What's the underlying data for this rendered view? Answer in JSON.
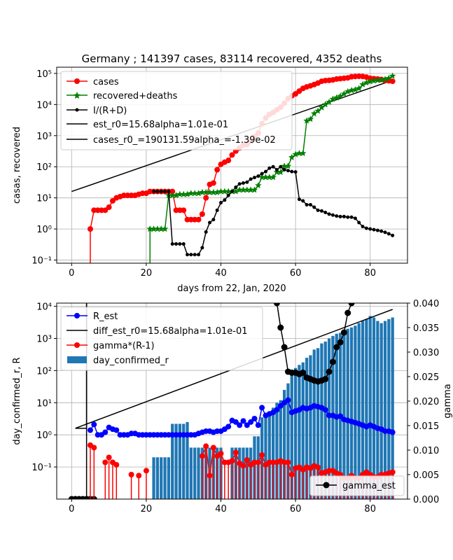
{
  "colors": {
    "cases": "#ff0000",
    "recovered": "#008000",
    "ir": "#000000",
    "est": "#000000",
    "r_est": "#0000ff",
    "gamma": "#ff0000",
    "bar": "#1f77b4",
    "grid": "#b0b0b0"
  },
  "chart_data": [
    {
      "type": "line",
      "title": "Germany ; 141397 cases, 83114 recovered, 4352 deaths",
      "xlabel": "days from 22, Jan, 2020",
      "ylabel": "casas, recovered",
      "xlim": [
        -4,
        90
      ],
      "yscale": "log",
      "ylim_log10": [
        -1.1,
        5.2
      ],
      "xticks": [
        0,
        20,
        40,
        60,
        80
      ],
      "yticks": [
        {
          "p": -1,
          "label": "10⁻¹"
        },
        {
          "p": 0,
          "label": "10⁰"
        },
        {
          "p": 1,
          "label": "10¹"
        },
        {
          "p": 2,
          "label": "10²"
        },
        {
          "p": 3,
          "label": "10³"
        },
        {
          "p": 4,
          "label": "10⁴"
        },
        {
          "p": 5,
          "label": "10⁵"
        }
      ],
      "grid": true,
      "legend_position": "top-left",
      "series": [
        {
          "key": "cases",
          "name": "cases",
          "marker": "circle",
          "x": [
            5,
            6,
            7,
            8,
            9,
            10,
            11,
            12,
            13,
            14,
            15,
            16,
            17,
            18,
            19,
            20,
            21,
            22,
            23,
            24,
            25,
            26,
            27,
            28,
            29,
            30,
            31,
            32,
            33,
            34,
            35,
            36,
            37,
            38,
            39,
            40,
            41,
            42,
            43,
            44,
            45,
            46,
            47,
            48,
            49,
            50,
            51,
            52,
            53,
            54,
            55,
            56,
            57,
            58,
            59,
            60,
            61,
            62,
            63,
            64,
            65,
            66,
            67,
            68,
            69,
            70,
            71,
            72,
            73,
            74,
            75,
            76,
            77,
            78,
            79,
            80,
            81,
            82,
            83,
            84,
            85,
            86
          ],
          "y": [
            1,
            4,
            4,
            4,
            4,
            5,
            8,
            10,
            11,
            12,
            12,
            12,
            12,
            13,
            14,
            14,
            16,
            16,
            16,
            16,
            16,
            16,
            16,
            4,
            4,
            4,
            2,
            2,
            2,
            2,
            3,
            10,
            27,
            30,
            80,
            120,
            140,
            160,
            240,
            320,
            400,
            500,
            520,
            660,
            920,
            1200,
            2400,
            3700,
            4800,
            5600,
            6800,
            8200,
            11000,
            15500,
            19000,
            22000,
            27000,
            33000,
            37000,
            40000,
            44000,
            49000,
            56000,
            59000,
            60000,
            62000,
            66000,
            68000,
            70000,
            72000,
            78000,
            80000,
            81000,
            80000,
            76000,
            70000,
            68000,
            66000,
            64000,
            60000,
            58000,
            56000
          ]
        },
        {
          "key": "recovered",
          "name": "recovered+deaths",
          "marker": "star",
          "x": [
            21,
            22,
            23,
            24,
            25,
            26,
            27,
            28,
            29,
            30,
            31,
            32,
            33,
            34,
            35,
            36,
            37,
            38,
            39,
            40,
            41,
            42,
            43,
            44,
            45,
            46,
            47,
            48,
            49,
            50,
            51,
            52,
            53,
            54,
            55,
            56,
            57,
            58,
            59,
            60,
            61,
            62,
            63,
            64,
            65,
            66,
            67,
            68,
            69,
            70,
            71,
            72,
            73,
            74,
            75,
            76,
            77,
            78,
            79,
            80,
            81,
            82,
            83,
            84,
            85,
            86
          ],
          "y": [
            1,
            1,
            1,
            1,
            1,
            12,
            12,
            12,
            13,
            13,
            13,
            14,
            14,
            14,
            15,
            15,
            15,
            15,
            15,
            16,
            16,
            16,
            16,
            16,
            18,
            18,
            18,
            18,
            18,
            25,
            46,
            46,
            46,
            46,
            67,
            67,
            105,
            105,
            200,
            250,
            270,
            270,
            3000,
            3400,
            5100,
            6200,
            8000,
            10000,
            12000,
            15000,
            16500,
            18600,
            22000,
            26000,
            28500,
            30000,
            33000,
            44000,
            50000,
            55000,
            58000,
            60000,
            62000,
            65000,
            70000,
            83000
          ]
        },
        {
          "key": "ir",
          "name": "I/(R+D)",
          "marker": "dot",
          "x": [
            22,
            23,
            24,
            25,
            26,
            27,
            28,
            29,
            30,
            31,
            32,
            33,
            34,
            35,
            36,
            37,
            38,
            39,
            40,
            41,
            42,
            43,
            44,
            45,
            46,
            47,
            48,
            49,
            50,
            51,
            52,
            53,
            54,
            55,
            56,
            57,
            58,
            59,
            60,
            61,
            62,
            63,
            64,
            65,
            66,
            67,
            68,
            69,
            70,
            71,
            72,
            73,
            74,
            75,
            76,
            77,
            78,
            79,
            80,
            81,
            82,
            83,
            84,
            85,
            86
          ],
          "y": [
            16,
            16,
            16,
            16,
            16,
            0.33,
            0.33,
            0.33,
            0.33,
            0.15,
            0.15,
            0.15,
            0.15,
            0.25,
            0.8,
            1.6,
            2,
            4,
            7,
            8.5,
            12,
            16,
            22,
            28,
            30,
            32,
            40,
            45,
            50,
            60,
            70,
            90,
            100,
            80,
            100,
            80,
            75,
            70,
            68,
            9,
            8,
            6,
            6,
            5,
            4,
            3.8,
            3.4,
            3,
            2.8,
            2.6,
            2.5,
            2.5,
            2.4,
            2.4,
            2.2,
            1.6,
            1.2,
            1.05,
            1,
            0.95,
            0.9,
            0.85,
            0.78,
            0.7,
            0.62
          ]
        },
        {
          "key": "est",
          "name": "est_r0=15.68alpha=1.01e-01",
          "x": [
            0,
            86
          ],
          "y": [
            16,
            60000
          ]
        },
        {
          "key": "est2",
          "name": "cases_r0_=190131.59alpha_=-1.39e-02",
          "x": [
            0,
            86
          ],
          "y": [
            16,
            60000
          ]
        }
      ]
    },
    {
      "type": "bar",
      "xlabel": "",
      "ylabel": "day_confirmed_r, R",
      "y2label": "gamma",
      "xlim": [
        -4,
        90
      ],
      "yscale": "log",
      "ylim_log10": [
        -2,
        4.1
      ],
      "y2lim": [
        0,
        0.04
      ],
      "xticks": [
        0,
        20,
        40,
        60,
        80
      ],
      "yticks": [
        {
          "p": -1,
          "label": "10⁻¹"
        },
        {
          "p": 0,
          "label": "10⁰"
        },
        {
          "p": 1,
          "label": "10¹"
        },
        {
          "p": 2,
          "label": "10²"
        },
        {
          "p": 3,
          "label": "10³"
        },
        {
          "p": 4,
          "label": "10⁴"
        }
      ],
      "y2ticks": [
        "0.000",
        "0.005",
        "0.010",
        "0.015",
        "0.020",
        "0.025",
        "0.030",
        "0.035",
        "0.040"
      ],
      "grid": true,
      "legend_position": "top-left",
      "legend2_position": "bottom-right",
      "legend": [
        {
          "key": "r_est",
          "label": "R_est"
        },
        {
          "key": "diff",
          "label": "diff_est_r0=15.68alpha=1.01e-01"
        },
        {
          "key": "gamma",
          "label": "gamma*(R-1)"
        },
        {
          "key": "bar",
          "label": "day_confirmed_r"
        }
      ],
      "legend2": [
        {
          "key": "gamma_est",
          "label": "gamma_est"
        }
      ],
      "bars": {
        "x": [
          22,
          23,
          24,
          25,
          26,
          27,
          28,
          29,
          30,
          31,
          32,
          33,
          34,
          35,
          36,
          37,
          38,
          39,
          40,
          41,
          42,
          43,
          44,
          45,
          46,
          47,
          48,
          49,
          50,
          51,
          52,
          53,
          54,
          55,
          56,
          57,
          58,
          59,
          60,
          61,
          62,
          63,
          64,
          65,
          66,
          67,
          68,
          69,
          70,
          71,
          72,
          73,
          74,
          75,
          76,
          77,
          78,
          79,
          80,
          81,
          82,
          83,
          84,
          85,
          86
        ],
        "y": [
          0.2,
          0.2,
          0.2,
          0.2,
          0.2,
          2.2,
          2.2,
          2.2,
          2.2,
          2.5,
          0.4,
          0.4,
          0.4,
          0.4,
          0.4,
          0.4,
          0.4,
          0.4,
          0.4,
          0,
          0,
          0.4,
          0.4,
          0.4,
          0.4,
          0.4,
          0.4,
          0.9,
          0.9,
          3.5,
          4,
          5,
          7,
          10,
          12,
          25,
          40,
          80,
          120,
          150,
          180,
          250,
          300,
          450,
          500,
          700,
          800,
          1000,
          1200,
          1400,
          1500,
          1700,
          2000,
          2200,
          2500,
          3000,
          3500,
          4000,
          5000,
          4500,
          3500,
          3000,
          3500,
          4000,
          4500
        ]
      },
      "r_est": {
        "x": [
          5,
          6,
          7,
          8,
          9,
          10,
          11,
          12,
          13,
          14,
          15,
          16,
          17,
          18,
          19,
          20,
          21,
          22,
          23,
          24,
          25,
          26,
          27,
          28,
          29,
          30,
          31,
          32,
          33,
          34,
          35,
          36,
          37,
          38,
          39,
          40,
          41,
          42,
          43,
          44,
          45,
          46,
          47,
          48,
          49,
          50,
          51,
          52,
          53,
          54,
          55,
          56,
          57,
          58,
          59,
          60,
          61,
          62,
          63,
          64,
          65,
          66,
          67,
          68,
          69,
          70,
          71,
          72,
          73,
          74,
          75,
          76,
          77,
          78,
          79,
          80,
          81,
          82,
          83,
          84,
          85,
          86
        ],
        "y": [
          1.4,
          2.1,
          1,
          1,
          1.2,
          1.7,
          1.5,
          1.4,
          1,
          1,
          1,
          1.1,
          1.1,
          1,
          1,
          1,
          1,
          1,
          1,
          1,
          1,
          1,
          1,
          1,
          1,
          1,
          1,
          1,
          1,
          1.1,
          1.2,
          1.3,
          1.3,
          1.2,
          1.3,
          1.3,
          1.5,
          1.8,
          2.8,
          2.5,
          2,
          2.7,
          2,
          2.5,
          3.2,
          2,
          7,
          4,
          4.5,
          5,
          6,
          8,
          10,
          12,
          5,
          5.5,
          6,
          7,
          6.5,
          7,
          8,
          7.5,
          7,
          6,
          4,
          4,
          3.6,
          3.8,
          3,
          2.8,
          2.6,
          2.4,
          2.2,
          2,
          1.8,
          2,
          1.8,
          1.6,
          1.5,
          1.3,
          1.3,
          1.2
        ]
      },
      "gamma": {
        "x": [
          5,
          6,
          9,
          10,
          11,
          12,
          16,
          18,
          20,
          35,
          36,
          37,
          38,
          39,
          40,
          41,
          42,
          43,
          44,
          45,
          46,
          47,
          48,
          49,
          50,
          51,
          52,
          53,
          54,
          55,
          56,
          57,
          58,
          59,
          60,
          61,
          62,
          63,
          64,
          65,
          66,
          67,
          68,
          69,
          70,
          71,
          72,
          73,
          74,
          75,
          76,
          77,
          78,
          79,
          80,
          81,
          82,
          83,
          84,
          85,
          86
        ],
        "y": [
          0.011,
          0.0105,
          0.0075,
          0.0085,
          0.0075,
          0.007,
          0.005,
          0.0048,
          0.0058,
          0.0088,
          0.0108,
          0.0048,
          0.0105,
          0.0088,
          0.0093,
          0.0075,
          0.0075,
          0.0078,
          0.0095,
          0.0073,
          0.0068,
          0.008,
          0.007,
          0.0075,
          0.0075,
          0.009,
          0.007,
          0.0075,
          0.0075,
          0.0075,
          0.0078,
          0.0075,
          0.0075,
          0.005,
          0.0063,
          0.0065,
          0.006,
          0.0065,
          0.0063,
          0.0068,
          0.0065,
          0.0053,
          0.0055,
          0.0058,
          0.0058,
          0.0053,
          0.005,
          0.0043,
          0.0043,
          0.0048,
          0.0043,
          0.0043,
          0.005,
          0.0055,
          0.005,
          0.0045,
          0.0045,
          0.005,
          0.005,
          0.0053,
          0.0055
        ]
      },
      "gamma_est": {
        "x": [
          0,
          1,
          2,
          3,
          4,
          5,
          6,
          53,
          54,
          55,
          56,
          57,
          58,
          59,
          60,
          61,
          62,
          63,
          64,
          65,
          66,
          67,
          68,
          69,
          70,
          71,
          72,
          73,
          74,
          75
        ],
        "y": [
          0,
          0,
          0,
          0,
          0,
          0,
          0,
          0.045,
          0.042,
          0.04,
          0.035,
          0.031,
          0.026,
          0.0258,
          0.0258,
          0.0255,
          0.0258,
          0.0248,
          0.0245,
          0.0242,
          0.024,
          0.0242,
          0.0245,
          0.026,
          0.028,
          0.031,
          0.032,
          0.034,
          0.038,
          0.04
        ]
      },
      "diff_est": {
        "x": [
          1,
          86
        ],
        "y": [
          1.6,
          8000
        ],
        "vertical_x": 4,
        "vertical_from": 1.6
      }
    }
  ]
}
